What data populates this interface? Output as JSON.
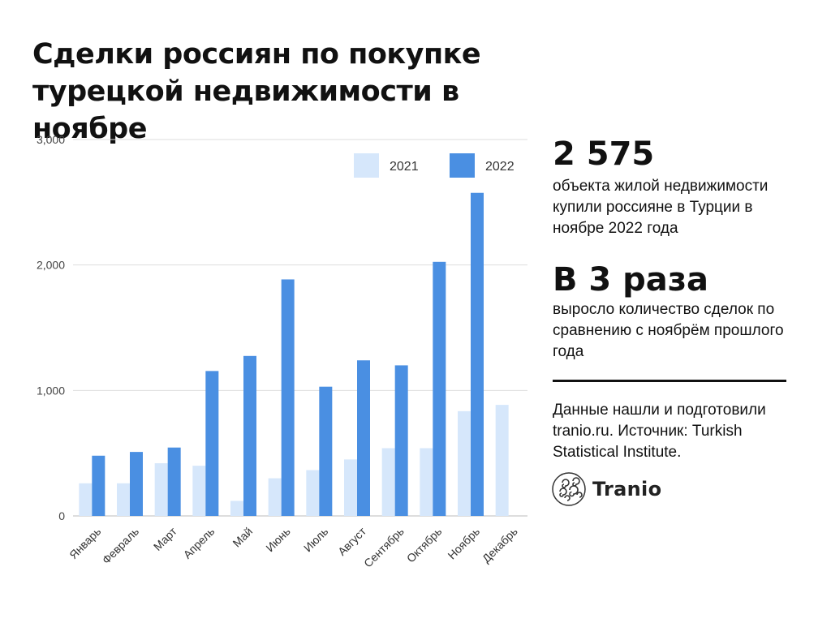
{
  "title": "Сделки россиян по покупке турецкой недвижимости в ноябре",
  "stats": {
    "big_number": "2 575",
    "big_number_text": "объекта жилой недвижимости купили россияне в Турции в ноябре 2022 года",
    "growth": "В 3 раза",
    "growth_text": "выросло количество сделок по сравнению с ноябрём прошлого года"
  },
  "source_note": "Данные нашли и подготовили tranio.ru. Источник: Turkish Statistical Institute.",
  "brand": {
    "name": "Tranio",
    "logo_icon": "tranio-swirl-logo-icon"
  },
  "colors": {
    "series_2021": "#d6e7fb",
    "series_2022": "#4a8fe2",
    "grid": "#dddddd",
    "axis": "#bbbbbb"
  },
  "chart_data": {
    "type": "bar",
    "title": "",
    "xlabel": "",
    "ylabel": "",
    "categories": [
      "Январь",
      "Февраль",
      "Март",
      "Апрель",
      "Май",
      "Июнь",
      "Июль",
      "Август",
      "Сентябрь",
      "Октябрь",
      "Ноябрь",
      "Декабрь"
    ],
    "series": [
      {
        "name": "2021",
        "values": [
          260,
          260,
          420,
          400,
          120,
          300,
          365,
          450,
          540,
          540,
          835,
          885
        ]
      },
      {
        "name": "2022",
        "values": [
          480,
          510,
          545,
          1155,
          1275,
          1885,
          1030,
          1240,
          1200,
          2025,
          2575,
          null
        ]
      }
    ],
    "ylim": [
      0,
      3000
    ],
    "yticks": [
      0,
      1000,
      2000,
      3000
    ],
    "ytick_labels": [
      "0",
      "1,000",
      "2,000",
      "3,000"
    ],
    "grid": true,
    "legend": "top-right"
  }
}
